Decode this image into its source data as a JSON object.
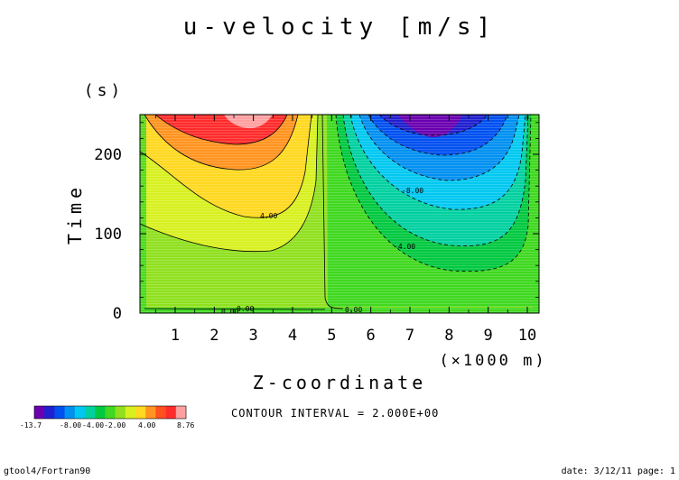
{
  "chart_data": {
    "type": "contour",
    "title": "u-velocity [m/s]",
    "xlabel": "Z-coordinate",
    "x_unit": "(×1000 m)",
    "ylabel": "Time",
    "y_unit": "(s)",
    "x_ticks": [
      "1",
      "2",
      "3",
      "4",
      "5",
      "6",
      "7",
      "8",
      "9",
      "10"
    ],
    "y_ticks": [
      "0",
      "100",
      "200"
    ],
    "xlim": [
      0.1,
      10.3
    ],
    "ylim": [
      0,
      250
    ],
    "contour_interval_text": "CONTOUR INTERVAL = 2.000E+00",
    "contour_labels": [
      "4.00",
      "0.00",
      "0.00",
      "0.00",
      "-8.00",
      "-4.00"
    ],
    "colorbar": {
      "min_label": "-13.7",
      "mid_labels": "-8.00",
      "overlap_label": "-4.00-2.00",
      "label_4": "4.00",
      "max_label": "8.76",
      "colors": [
        "#6a00b0",
        "#2020d0",
        "#0050f0",
        "#0090f0",
        "#00c8f0",
        "#00d0a0",
        "#00c840",
        "#40d820",
        "#90e020",
        "#d8f020",
        "#ffd820",
        "#ff9420",
        "#ff5020",
        "#ff2c2c",
        "#ffa0a0"
      ]
    },
    "grid": false,
    "legend": "colorbar bottom-left"
  },
  "footer": {
    "left": "gtool4/Fortran90",
    "right": "date: 3/12/11 page: 1"
  }
}
